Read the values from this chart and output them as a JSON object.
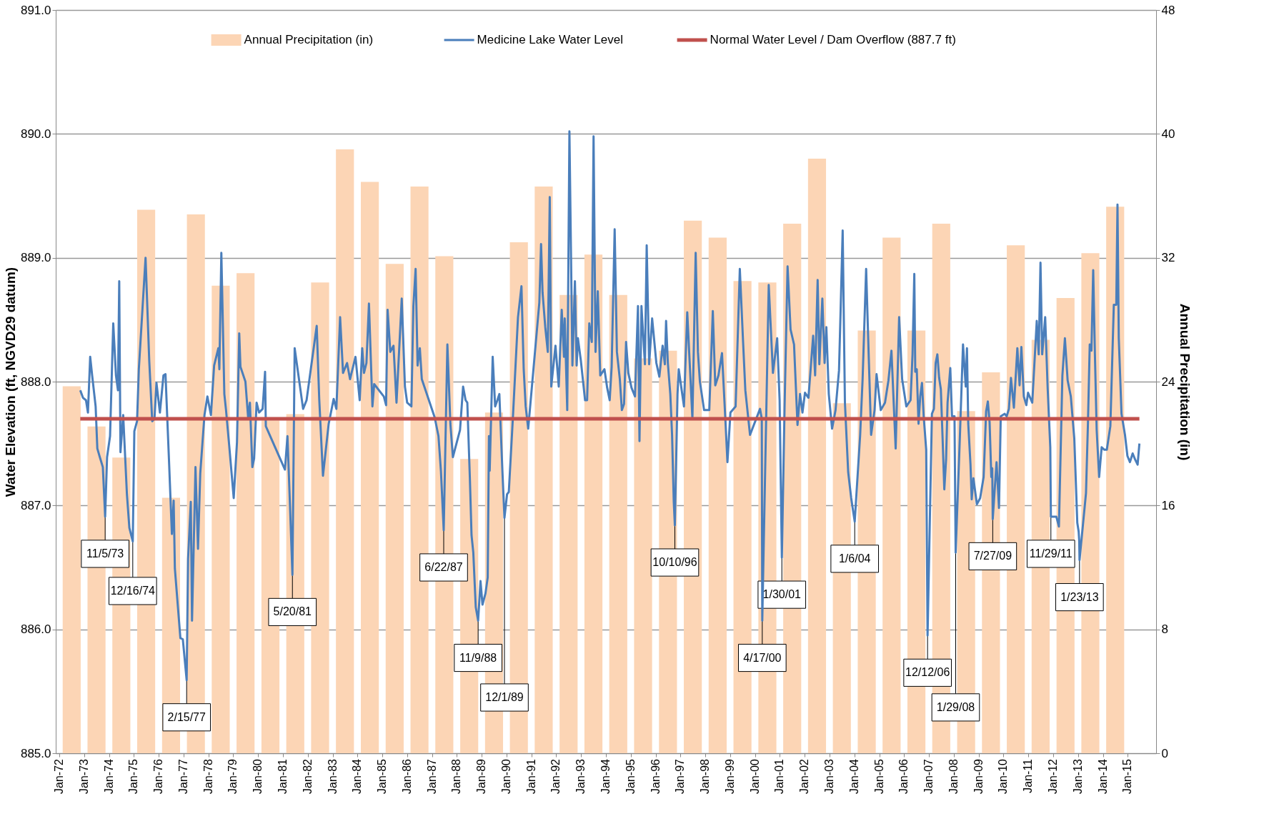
{
  "chart_data": {
    "type": "line",
    "xlim": [
      "1972-01-01",
      "2016-01-01"
    ],
    "xticks": [
      {
        "value": "1972-01-01",
        "label": "Jan-72"
      },
      {
        "value": "1973-01-01",
        "label": "Jan-73"
      },
      {
        "value": "1974-01-01",
        "label": "Jan-74"
      },
      {
        "value": "1975-01-01",
        "label": "Jan-75"
      },
      {
        "value": "1976-01-01",
        "label": "Jan-76"
      },
      {
        "value": "1977-01-01",
        "label": "Jan-77"
      },
      {
        "value": "1978-01-01",
        "label": "Jan-78"
      },
      {
        "value": "1979-01-01",
        "label": "Jan-79"
      },
      {
        "value": "1980-01-01",
        "label": "Jan-80"
      },
      {
        "value": "1981-01-01",
        "label": "Jan-81"
      },
      {
        "value": "1982-01-01",
        "label": "Jan-82"
      },
      {
        "value": "1983-01-01",
        "label": "Jan-83"
      },
      {
        "value": "1984-01-01",
        "label": "Jan-84"
      },
      {
        "value": "1985-01-01",
        "label": "Jan-85"
      },
      {
        "value": "1986-01-01",
        "label": "Jan-86"
      },
      {
        "value": "1987-01-01",
        "label": "Jan-87"
      },
      {
        "value": "1988-01-01",
        "label": "Jan-88"
      },
      {
        "value": "1989-01-01",
        "label": "Jan-89"
      },
      {
        "value": "1990-01-01",
        "label": "Jan-90"
      },
      {
        "value": "1991-01-01",
        "label": "Jan-91"
      },
      {
        "value": "1992-01-01",
        "label": "Jan-92"
      },
      {
        "value": "1993-01-01",
        "label": "Jan-93"
      },
      {
        "value": "1994-01-01",
        "label": "Jan-94"
      },
      {
        "value": "1995-01-01",
        "label": "Jan-95"
      },
      {
        "value": "1996-01-01",
        "label": "Jan-96"
      },
      {
        "value": "1997-01-01",
        "label": "Jan-97"
      },
      {
        "value": "1998-01-01",
        "label": "Jan-98"
      },
      {
        "value": "1999-01-01",
        "label": "Jan-99"
      },
      {
        "value": "2000-01-01",
        "label": "Jan-00"
      },
      {
        "value": "2001-01-01",
        "label": "Jan-01"
      },
      {
        "value": "2002-01-01",
        "label": "Jan-02"
      },
      {
        "value": "2003-01-01",
        "label": "Jan-03"
      },
      {
        "value": "2004-01-01",
        "label": "Jan-04"
      },
      {
        "value": "2005-01-01",
        "label": "Jan-05"
      },
      {
        "value": "2006-01-01",
        "label": "Jan-06"
      },
      {
        "value": "2007-01-01",
        "label": "Jan-07"
      },
      {
        "value": "2008-01-01",
        "label": "Jan-08"
      },
      {
        "value": "2009-01-01",
        "label": "Jan-09"
      },
      {
        "value": "2010-01-01",
        "label": "Jan-10"
      },
      {
        "value": "2011-01-01",
        "label": "Jan-11"
      },
      {
        "value": "2012-01-01",
        "label": "Jan-12"
      },
      {
        "value": "2013-01-01",
        "label": "Jan-13"
      },
      {
        "value": "2014-01-01",
        "label": "Jan-14"
      },
      {
        "value": "2015-01-01",
        "label": "Jan-15"
      }
    ],
    "ylabel": "Water Elevation (ft, NGVD29 datum)",
    "ylim": [
      885,
      891
    ],
    "yticks": [
      {
        "value": 885,
        "label": "885.0"
      },
      {
        "value": 886,
        "label": "886.0"
      },
      {
        "value": 887,
        "label": "887.0"
      },
      {
        "value": 888,
        "label": "888.0"
      },
      {
        "value": 889,
        "label": "889.0"
      },
      {
        "value": 890,
        "label": "890.0"
      },
      {
        "value": 891,
        "label": "891.0"
      }
    ],
    "y2label": "Annual Precipitation (in)",
    "y2lim": [
      0,
      48
    ],
    "y2ticks": [
      0,
      8,
      16,
      24,
      32,
      40,
      48
    ],
    "grid": "y",
    "legend": "top",
    "series": [
      {
        "name": "Annual Precipitation (in)",
        "type": "bar",
        "axis": "y2",
        "color": "#fcd5b5",
        "x": [
          "1972-07-01",
          "1973-07-01",
          "1974-07-01",
          "1975-07-01",
          "1976-07-01",
          "1977-07-01",
          "1978-07-01",
          "1979-07-01",
          "1980-07-01",
          "1981-07-01",
          "1982-07-01",
          "1983-07-01",
          "1984-07-01",
          "1985-07-01",
          "1986-07-01",
          "1987-07-01",
          "1988-07-01",
          "1989-07-01",
          "1990-07-01",
          "1991-07-01",
          "1992-07-01",
          "1993-07-01",
          "1994-07-01",
          "1995-07-01",
          "1996-07-01",
          "1997-07-01",
          "1998-07-01",
          "1999-07-01",
          "2000-07-01",
          "2001-07-01",
          "2002-07-01",
          "2003-07-01",
          "2004-07-01",
          "2005-07-01",
          "2006-07-01",
          "2007-07-01",
          "2008-07-01",
          "2009-07-01",
          "2010-07-01",
          "2011-07-01",
          "2012-07-01",
          "2013-07-01",
          "2014-07-01"
        ],
        "values": [
          23.7,
          21.1,
          19.1,
          35.1,
          16.5,
          34.8,
          30.2,
          31.0,
          21.5,
          21.9,
          30.4,
          39.0,
          36.9,
          31.6,
          36.6,
          32.1,
          19.0,
          22.0,
          33.0,
          36.6,
          29.6,
          32.2,
          29.6,
          25.5,
          26.0,
          34.4,
          33.3,
          30.5,
          30.4,
          34.2,
          38.4,
          22.6,
          27.3,
          33.3,
          27.3,
          34.2,
          22.1,
          24.6,
          32.8,
          26.7,
          29.4,
          32.3,
          35.3
        ]
      },
      {
        "name": "Medicine Lake Water Level",
        "type": "line",
        "color": "#4a7ebb",
        "x": [
          "1972-11-04",
          "1972-12-14",
          "1973-01-27",
          "1973-02-25",
          "1973-03-30",
          "1973-04-28",
          "1973-06-18",
          "1973-07-13",
          "1973-08-19",
          "1973-10-02",
          "1973-11-05",
          "1973-12-03",
          "1974-01-16",
          "1974-03-04",
          "1974-04-13",
          "1974-05-12",
          "1974-05-31",
          "1974-06-18",
          "1974-07-28",
          "1974-09-21",
          "1974-10-27",
          "1974-12-16",
          "1975-01-08",
          "1975-02-17",
          "1975-03-15",
          "1975-06-22",
          "1975-08-15",
          "1975-09-28",
          "1975-10-31",
          "1975-11-29",
          "1976-01-19",
          "1976-03-11",
          "1976-04-10",
          "1976-06-03",
          "1976-07-13",
          "1976-08-08",
          "1976-08-26",
          "1976-11-15",
          "1976-12-21",
          "1977-02-15",
          "1977-03-08",
          "1977-04-17",
          "1977-05-05",
          "1977-06-25",
          "1977-08-01",
          "1977-09-03",
          "1977-11-04",
          "1977-12-17",
          "1978-02-07",
          "1978-03-26",
          "1978-05-27",
          "1978-06-11",
          "1978-07-10",
          "1978-08-23",
          "1978-09-17",
          "1978-10-31",
          "1979-01-08",
          "1979-02-25",
          "1979-03-30",
          "1979-04-17",
          "1979-06-29",
          "1979-08-08",
          "1979-09-03",
          "1979-10-09",
          "1979-11-04",
          "1979-12-10",
          "1980-01-16",
          "1980-03-08",
          "1980-04-13",
          "1980-04-24",
          "1981-01-30",
          "1981-03-08",
          "1981-04-13",
          "1981-05-20",
          "1981-06-22",
          "1981-10-24",
          "1981-12-14",
          "1982-05-12",
          "1982-06-18",
          "1982-08-12",
          "1982-11-04",
          "1983-01-16",
          "1983-02-25",
          "1983-04-21",
          "1983-06-03",
          "1983-08-01",
          "1983-09-14",
          "1983-12-03",
          "1984-02-03",
          "1984-03-11",
          "1984-04-06",
          "1984-05-12",
          "1984-06-18",
          "1984-08-08",
          "1984-09-03",
          "1985-01-23",
          "1985-02-25",
          "1985-03-19",
          "1985-04-28",
          "1985-06-14",
          "1985-07-28",
          "1985-10-13",
          "1985-11-29",
          "1986-01-01",
          "1986-03-04",
          "1986-04-02",
          "1986-05-05",
          "1986-06-03",
          "1986-07-06",
          "1986-08-04",
          "1987-02-10",
          "1987-04-06",
          "1987-05-12",
          "1987-06-22",
          "1987-08-15",
          "1987-09-28",
          "1987-11-04",
          "1988-02-17",
          "1988-04-02",
          "1988-05-09",
          "1988-06-03",
          "1988-07-10",
          "1988-08-04",
          "1988-08-30",
          "1988-10-05",
          "1988-11-09",
          "1988-12-14",
          "1989-01-12",
          "1989-02-25",
          "1989-03-30",
          "1989-04-17",
          "1989-04-28",
          "1989-06-11",
          "1989-07-17",
          "1989-08-19",
          "1989-09-17",
          "1989-10-31",
          "1989-12-01",
          "1990-01-08",
          "1990-02-03",
          "1990-04-06",
          "1990-06-18",
          "1990-08-08",
          "1990-09-10",
          "1990-10-09",
          "1990-11-15",
          "1991-04-28",
          "1991-05-23",
          "1991-06-14",
          "1991-07-24",
          "1991-08-30",
          "1991-09-28",
          "1991-10-20",
          "1991-12-21",
          "1992-02-07",
          "1992-03-22",
          "1992-04-24",
          "1992-05-05",
          "1992-06-11",
          "1992-07-13",
          "1992-08-26",
          "1992-10-02",
          "1992-10-27",
          "1992-11-15",
          "1992-12-28",
          "1993-02-28",
          "1993-03-30",
          "1993-05-01",
          "1993-06-07",
          "1993-07-03",
          "1993-08-01",
          "1993-09-03",
          "1993-10-09",
          "1993-12-10",
          "1994-01-19",
          "1994-02-25",
          "1994-03-26",
          "1994-05-09",
          "1994-06-11",
          "1994-07-24",
          "1994-08-23",
          "1994-09-24",
          "1994-10-24",
          "1994-11-26",
          "1995-01-12",
          "1995-03-04",
          "1995-04-17",
          "1995-05-09",
          "1995-06-07",
          "1995-07-28",
          "1995-08-23",
          "1995-09-28",
          "1995-11-11",
          "1996-01-12",
          "1996-02-25",
          "1996-04-13",
          "1996-05-16",
          "1996-06-03",
          "1996-06-29",
          "1996-08-04",
          "1996-08-30",
          "1996-09-24",
          "1996-10-10",
          "1996-11-18",
          "1996-12-06",
          "1997-02-21",
          "1997-04-10",
          "1997-06-25",
          "1997-08-12",
          "1997-09-14",
          "1997-10-13",
          "1997-12-14",
          "1998-02-28",
          "1998-04-21",
          "1998-05-27",
          "1998-07-13",
          "1998-09-03",
          "1998-10-24",
          "1998-11-22",
          "1999-01-05",
          "1999-03-22",
          "1999-05-23",
          "1999-07-10",
          "1999-08-12",
          "1999-10-20",
          "2000-03-15",
          "2000-04-10",
          "2000-04-17",
          "2000-07-21",
          "2000-09-21",
          "2000-11-22",
          "2000-12-28",
          "2001-01-30",
          "2001-03-11",
          "2001-04-24",
          "2001-06-07",
          "2001-07-28",
          "2001-09-17",
          "2001-10-24",
          "2001-11-29",
          "2002-01-05",
          "2002-02-25",
          "2002-05-05",
          "2002-06-03",
          "2002-07-10",
          "2002-08-04",
          "2002-09-17",
          "2002-10-20",
          "2002-11-15",
          "2002-12-21",
          "2003-02-07",
          "2003-03-30",
          "2003-05-20",
          "2003-06-11",
          "2003-07-13",
          "2003-08-15",
          "2003-10-02",
          "2003-11-15",
          "2004-01-06",
          "2004-03-26",
          "2004-05-01",
          "2004-06-22",
          "2004-07-21",
          "2004-09-03",
          "2004-10-24",
          "2004-11-22",
          "2005-01-23",
          "2005-03-26",
          "2005-05-16",
          "2005-06-29",
          "2005-08-30",
          "2005-10-20",
          "2005-12-03",
          "2006-02-03",
          "2006-04-06",
          "2006-05-05",
          "2006-05-31",
          "2006-06-14",
          "2006-07-06",
          "2006-08-01",
          "2006-08-26",
          "2006-09-21",
          "2006-10-16",
          "2006-11-22",
          "2006-12-12",
          "2007-02-14",
          "2007-03-15",
          "2007-04-10",
          "2007-05-05",
          "2007-05-31",
          "2007-06-25",
          "2007-07-21",
          "2007-08-15",
          "2007-09-10",
          "2007-10-02",
          "2007-11-11",
          "2007-12-06",
          "2008-01-12",
          "2008-01-29",
          "2008-03-30",
          "2008-05-16",
          "2008-06-25",
          "2008-07-13",
          "2008-08-01",
          "2008-09-03",
          "2008-09-21",
          "2008-10-16",
          "2008-12-06",
          "2009-01-23",
          "2009-03-15",
          "2009-04-21",
          "2009-05-16",
          "2009-06-11",
          "2009-07-06",
          "2009-07-20",
          "2009-07-27",
          "2009-09-21",
          "2009-10-27",
          "2009-11-22",
          "2010-01-19",
          "2010-02-17",
          "2010-03-22",
          "2010-04-21",
          "2010-06-03",
          "2010-07-24",
          "2010-08-26",
          "2010-09-21",
          "2010-10-27",
          "2010-12-03",
          "2010-12-28",
          "2011-02-28",
          "2011-05-05",
          "2011-06-03",
          "2011-06-29",
          "2011-07-24",
          "2011-09-06",
          "2011-10-13",
          "2011-11-20",
          "2011-11-29",
          "2012-02-17",
          "2012-03-26",
          "2012-05-16",
          "2012-06-22",
          "2012-08-01",
          "2012-09-17",
          "2012-11-07",
          "2012-12-21",
          "2013-01-10",
          "2013-01-18",
          "2013-01-23",
          "2013-04-28",
          "2013-05-27",
          "2013-06-22",
          "2013-07-17",
          "2013-08-12",
          "2013-09-06",
          "2013-10-02",
          "2013-11-07",
          "2013-12-14",
          "2014-01-23",
          "2014-02-28",
          "2014-04-21",
          "2014-06-11",
          "2014-07-17",
          "2014-08-04",
          "2014-08-23",
          "2014-10-02",
          "2014-11-22",
          "2014-12-28",
          "2015-02-03",
          "2015-03-15",
          "2015-04-21",
          "2015-05-27",
          "2015-06-22"
        ],
        "values": [
          887.93,
          887.87,
          887.85,
          887.75,
          888.2,
          888.05,
          887.8,
          887.46,
          887.39,
          887.31,
          886.91,
          887.39,
          887.56,
          888.47,
          888.05,
          887.93,
          888.81,
          887.43,
          887.73,
          887.09,
          886.82,
          886.71,
          887.6,
          887.68,
          888.1,
          889.0,
          888.17,
          887.68,
          887.7,
          887.99,
          887.75,
          888.05,
          888.06,
          887.33,
          886.77,
          887.04,
          886.49,
          885.93,
          885.92,
          885.59,
          886.57,
          887.03,
          886.07,
          887.31,
          886.65,
          887.26,
          887.73,
          887.88,
          887.73,
          888.13,
          888.27,
          888.1,
          889.04,
          887.9,
          887.77,
          887.5,
          887.06,
          887.51,
          888.39,
          888.12,
          888.0,
          887.71,
          887.83,
          887.31,
          887.38,
          887.83,
          887.75,
          887.78,
          888.08,
          887.64,
          887.29,
          887.56,
          887.02,
          886.44,
          888.27,
          887.78,
          887.85,
          888.45,
          887.86,
          887.24,
          887.66,
          887.86,
          887.78,
          888.52,
          888.07,
          888.15,
          888.02,
          888.2,
          887.85,
          888.27,
          888.07,
          888.15,
          888.63,
          887.8,
          887.98,
          887.88,
          887.81,
          888.58,
          888.24,
          888.29,
          887.83,
          888.67,
          887.96,
          887.83,
          887.8,
          888.61,
          888.91,
          888.13,
          888.27,
          888.02,
          887.71,
          887.56,
          887.28,
          886.8,
          888.3,
          887.66,
          887.39,
          887.61,
          887.96,
          887.85,
          887.83,
          887.23,
          886.76,
          886.62,
          886.18,
          886.07,
          886.39,
          886.2,
          886.29,
          886.42,
          887.56,
          887.28,
          888.2,
          887.8,
          887.85,
          887.9,
          887.29,
          886.9,
          887.09,
          887.11,
          887.73,
          888.52,
          888.77,
          888.1,
          887.8,
          887.62,
          888.64,
          889.11,
          888.72,
          888.44,
          888.24,
          889.49,
          887.96,
          888.29,
          887.96,
          888.58,
          888.2,
          888.51,
          887.77,
          890.02,
          888.13,
          888.81,
          888.13,
          888.35,
          888.17,
          887.85,
          887.85,
          888.47,
          888.32,
          889.98,
          888.24,
          888.73,
          888.05,
          888.1,
          887.95,
          887.85,
          888.12,
          889.23,
          888.24,
          888.02,
          887.77,
          887.82,
          888.32,
          888.07,
          887.95,
          887.88,
          888.61,
          887.52,
          888.61,
          888.14,
          889.1,
          888.14,
          888.51,
          888.15,
          888.04,
          888.29,
          888.14,
          888.49,
          888.15,
          887.9,
          887.57,
          887.03,
          886.84,
          887.9,
          888.1,
          887.8,
          888.56,
          887.7,
          889.04,
          888.24,
          888.0,
          887.77,
          887.77,
          888.57,
          887.97,
          888.05,
          888.23,
          887.68,
          887.35,
          887.75,
          887.8,
          888.91,
          888.32,
          887.93,
          887.57,
          887.78,
          887.7,
          886.07,
          888.78,
          888.07,
          888.35,
          887.85,
          886.58,
          887.8,
          888.93,
          888.42,
          888.3,
          887.65,
          887.9,
          887.75,
          887.91,
          887.87,
          888.37,
          888.05,
          888.82,
          888.14,
          888.67,
          888.15,
          888.44,
          887.9,
          887.62,
          887.77,
          888.09,
          888.54,
          889.22,
          887.83,
          887.27,
          887.06,
          886.87,
          887.57,
          888.02,
          888.91,
          888.37,
          887.57,
          887.77,
          888.06,
          887.77,
          887.83,
          888.01,
          888.25,
          887.46,
          888.52,
          888.02,
          887.8,
          887.85,
          888.22,
          888.87,
          888.08,
          888.1,
          887.66,
          887.88,
          887.99,
          887.72,
          887.45,
          885.95,
          887.74,
          887.78,
          888.15,
          888.22,
          888.03,
          887.94,
          887.54,
          887.13,
          887.37,
          887.83,
          888.11,
          887.72,
          887.72,
          886.62,
          887.54,
          888.3,
          887.96,
          888.27,
          887.66,
          887.33,
          887.05,
          887.22,
          887.01,
          887.06,
          887.23,
          887.76,
          887.84,
          887.67,
          887.23,
          887.3,
          886.89,
          887.35,
          886.98,
          887.72,
          887.74,
          887.72,
          887.78,
          888.03,
          887.79,
          888.27,
          887.97,
          888.28,
          887.88,
          887.81,
          887.91,
          887.83,
          888.49,
          888.22,
          888.96,
          888.22,
          888.52,
          887.94,
          887.47,
          886.91,
          886.91,
          886.83,
          888.05,
          888.35,
          888.01,
          887.88,
          887.54,
          886.86,
          886.79,
          886.72,
          886.56,
          887.1,
          887.67,
          888.3,
          888.25,
          888.9,
          888.22,
          887.61,
          887.23,
          887.47,
          887.45,
          887.45,
          887.64,
          888.62,
          888.62,
          889.43,
          888.35,
          887.74,
          887.57,
          887.4,
          887.35,
          887.42,
          887.37,
          887.33,
          887.5
        ]
      }
    ],
    "ref_lines": [
      {
        "axis": "y",
        "value": 887.7,
        "label": "Normal Water Level / Dam Overflow (887.7 ft)",
        "color": "#c0504d"
      }
    ],
    "annotations": [
      {
        "text": "11/5/73",
        "x": "1973-11-05",
        "y": 886.91
      },
      {
        "text": "12/16/74",
        "x": "1974-12-16",
        "y": 886.71
      },
      {
        "text": "2/15/77",
        "x": "1977-02-15",
        "y": 885.59
      },
      {
        "text": "5/20/81",
        "x": "1981-05-20",
        "y": 886.44
      },
      {
        "text": "6/22/87",
        "x": "1987-06-22",
        "y": 886.8
      },
      {
        "text": "11/9/88",
        "x": "1988-11-09",
        "y": 886.07
      },
      {
        "text": "12/1/89",
        "x": "1989-12-01",
        "y": 886.9
      },
      {
        "text": "10/10/96",
        "x": "1996-10-10",
        "y": 886.84
      },
      {
        "text": "4/17/00",
        "x": "2000-04-17",
        "y": 886.07
      },
      {
        "text": "1/30/01",
        "x": "2001-01-30",
        "y": 886.58
      },
      {
        "text": "1/6/04",
        "x": "2004-01-06",
        "y": 886.87
      },
      {
        "text": "12/12/06",
        "x": "2006-12-12",
        "y": 885.95
      },
      {
        "text": "1/29/08",
        "x": "2008-01-29",
        "y": 886.62
      },
      {
        "text": "7/27/09",
        "x": "2009-07-27",
        "y": 886.89
      },
      {
        "text": "11/29/11",
        "x": "2011-11-29",
        "y": 886.91
      },
      {
        "text": "1/23/13",
        "x": "2013-01-23",
        "y": 886.56
      }
    ]
  }
}
